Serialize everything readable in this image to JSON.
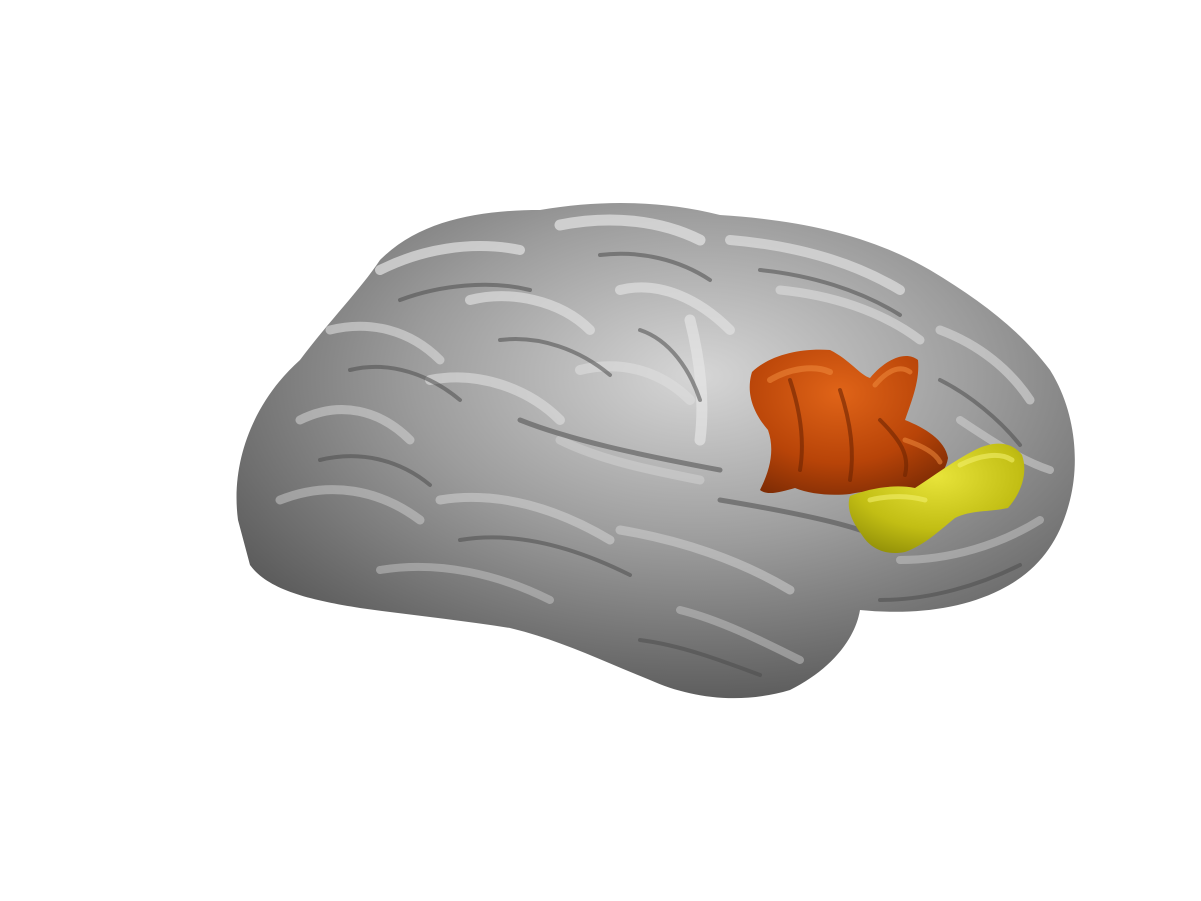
{
  "scene": {
    "subject": "cortical-surface-render",
    "view": "lateral-left-hemisphere",
    "background_color": "#ffffff",
    "surface_color": "#8a8a8a",
    "regions": [
      {
        "id": "region-1",
        "color": "#c24a0a"
      },
      {
        "id": "region-2",
        "color": "#c7c414"
      }
    ]
  }
}
